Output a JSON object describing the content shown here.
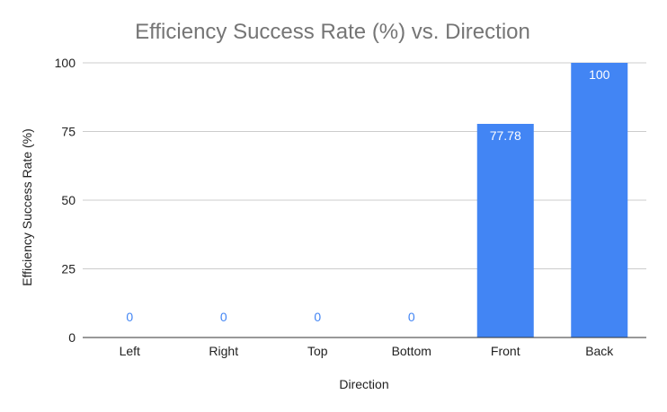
{
  "chart_data": {
    "type": "bar",
    "title": "Efficiency Success Rate (%) vs. Direction",
    "xlabel": "Direction",
    "ylabel": "Efficiency Success Rate (%)",
    "categories": [
      "Left",
      "Right",
      "Top",
      "Bottom",
      "Front",
      "Back"
    ],
    "values": [
      0,
      0,
      0,
      0,
      77.78,
      100
    ],
    "data_labels": [
      "0",
      "0",
      "0",
      "0",
      "77.78",
      "100"
    ],
    "ylim": [
      0,
      100
    ],
    "yticks": [
      0,
      25,
      50,
      75,
      100
    ],
    "grid": true,
    "legend": "none",
    "bar_color": "#4285f4"
  }
}
